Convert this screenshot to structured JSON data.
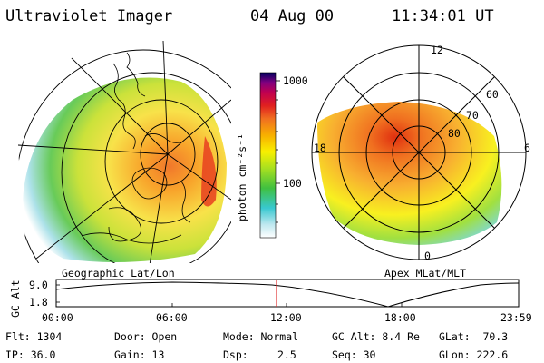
{
  "header": {
    "title": "Ultraviolet Imager",
    "date": "04 Aug 00",
    "time": "11:34:01 UT"
  },
  "colorbar": {
    "unit_label": "photon cm⁻²s⁻¹",
    "ticks": [
      "1000",
      "100"
    ]
  },
  "panels": {
    "left_label": "Geographic Lat/Lon",
    "right_label": "Apex MLat/MLT",
    "polar_labels": {
      "top": "12",
      "right": "6",
      "left": "18",
      "bottom": "0",
      "lat60": "60",
      "lat70": "70",
      "lat80": "80"
    }
  },
  "altitude_plot": {
    "ylabel": "GC Alt",
    "yticks": [
      "9.0",
      "1.8"
    ],
    "xticks": [
      "00:00",
      "06:00",
      "12:00",
      "18:00",
      "23:59"
    ],
    "current_time_marker": "11:34",
    "marker_color": "#e03030"
  },
  "info": {
    "flt": "Flt: 1304",
    "ip": "IP: 36.0",
    "door": "Door: Open",
    "gain": "Gain: 13",
    "mode": "Mode: Normal",
    "dsp_label": "Dsp:",
    "dsp_value": "2.5",
    "gcalt": "GC Alt: 8.4 Re",
    "seq": "Seq: 30",
    "glat": "GLat:  70.3",
    "glon": "GLon: 222.6"
  }
}
